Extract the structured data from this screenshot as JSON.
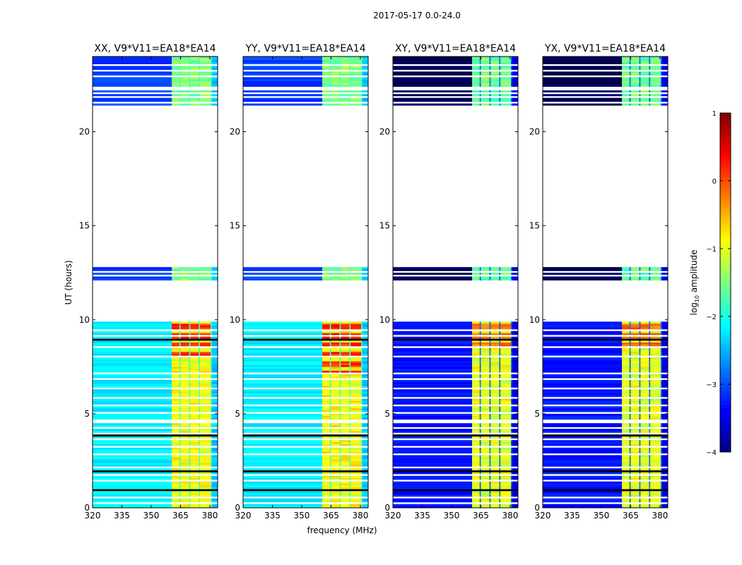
{
  "chart_data": {
    "type": "heatmap",
    "suptitle": "2017-05-17 0.0-24.0",
    "xlabel": "frequency (MHz)",
    "ylabel": "UT (hours)",
    "xlim": [
      320,
      384
    ],
    "ylim": [
      0,
      24
    ],
    "xticks": [
      320,
      335,
      350,
      365,
      380
    ],
    "xtick_labels": [
      "320",
      "335",
      "350",
      "365",
      "380"
    ],
    "yticks": [
      0,
      5,
      10,
      15,
      20
    ],
    "ytick_labels": [
      "0",
      "5",
      "10",
      "15",
      "20"
    ],
    "colorbar": {
      "label_main": "log",
      "label_sub": "10",
      "label_tail": " amplitude",
      "range": [
        -4,
        1
      ],
      "ticks": [
        1,
        0,
        -1,
        -2,
        -3,
        -4
      ],
      "tick_labels": [
        "1",
        "0",
        "−1",
        "−2",
        "−3",
        "−4"
      ],
      "colormap": "jet"
    },
    "rfi_band_mhz": [
      360.5,
      381
    ],
    "rfi_gaps_mhz": [
      365,
      370,
      375
    ],
    "data_blocks_hours": [
      [
        0,
        9.85
      ],
      [
        12.1,
        12.8
      ],
      [
        21.4,
        22.2
      ],
      [
        22.4,
        22.9
      ],
      [
        23.0,
        24.0
      ]
    ],
    "flagged_rows_hours": [
      0.3,
      0.6,
      1.2,
      1.5,
      1.8,
      2.2,
      2.9,
      3.3,
      3.7,
      4.0,
      4.3,
      4.6,
      5.0,
      5.4,
      5.8,
      6.3,
      6.8,
      7.1,
      8.0,
      8.5,
      9.1,
      9.4,
      12.3,
      12.5,
      21.6,
      21.9,
      22.1,
      23.3,
      23.6
    ],
    "black_rows_hours": [
      0.95,
      2.0,
      3.85,
      5.0,
      8.95,
      23.0
    ],
    "panels": [
      {
        "title": "XX, V9*V11=EA18*EA14",
        "base_level": -2.2,
        "rfi_level": -0.9,
        "hot_level": 0.2,
        "hot_hours": [
          8.0,
          9.85
        ]
      },
      {
        "title": "YY, V9*V11=EA18*EA14",
        "base_level": -2.2,
        "rfi_level": -0.9,
        "hot_level": 0.2,
        "hot_hours": [
          7.2,
          9.85
        ]
      },
      {
        "title": "XY, V9*V11=EA18*EA14",
        "base_level": -3.3,
        "rfi_level": -1.0,
        "hot_level": -0.2,
        "hot_hours": [
          8.5,
          9.85
        ]
      },
      {
        "title": "YX, V9*V11=EA18*EA14",
        "base_level": -3.3,
        "rfi_level": -1.0,
        "hot_level": -0.1,
        "hot_hours": [
          8.5,
          9.85
        ]
      }
    ]
  }
}
